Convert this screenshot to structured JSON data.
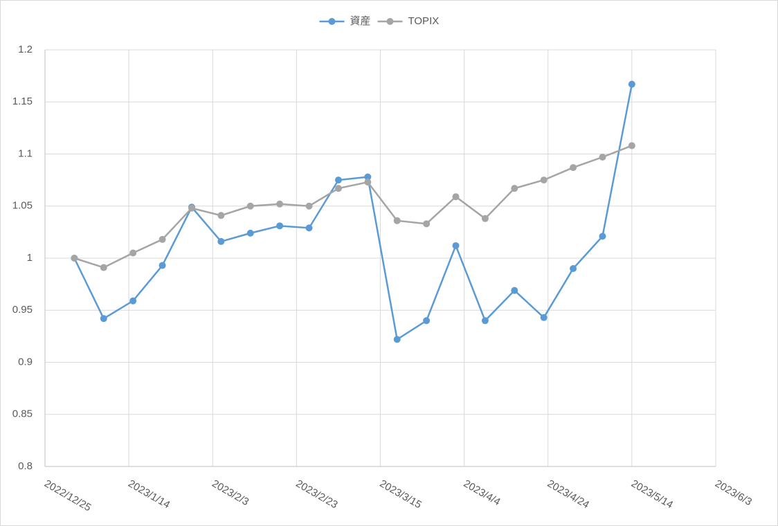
{
  "chart_data": {
    "type": "line",
    "x": [
      "2023/1/1",
      "2023/1/8",
      "2023/1/15",
      "2023/1/22",
      "2023/1/29",
      "2023/2/5",
      "2023/2/12",
      "2023/2/19",
      "2023/2/26",
      "2023/3/5",
      "2023/3/12",
      "2023/3/19",
      "2023/3/26",
      "2023/4/2",
      "2023/4/9",
      "2023/4/16",
      "2023/4/23",
      "2023/4/30",
      "2023/5/7",
      "2023/5/14"
    ],
    "series": [
      {
        "name": "資産",
        "color": "#5b9bd5",
        "values": [
          1.0,
          0.942,
          0.959,
          0.993,
          1.049,
          1.016,
          1.024,
          1.031,
          1.029,
          1.075,
          1.078,
          0.922,
          0.94,
          1.012,
          0.94,
          0.969,
          0.943,
          0.99,
          1.021,
          1.167
        ]
      },
      {
        "name": "TOPIX",
        "color": "#a5a5a5",
        "values": [
          1.0,
          0.991,
          1.005,
          1.018,
          1.048,
          1.041,
          1.05,
          1.052,
          1.05,
          1.067,
          1.073,
          1.036,
          1.033,
          1.059,
          1.038,
          1.067,
          1.075,
          1.087,
          1.097,
          1.108
        ]
      }
    ],
    "xlim": [
      "2022/12/25",
      "2023/6/3"
    ],
    "xticks": [
      "2022/12/25",
      "2023/1/14",
      "2023/2/3",
      "2023/2/23",
      "2023/3/15",
      "2023/4/4",
      "2023/4/24",
      "2023/5/14",
      "2023/6/3"
    ],
    "ylim": [
      0.8,
      1.2
    ],
    "yticks": [
      0.8,
      0.85,
      0.9,
      0.95,
      1,
      1.05,
      1.1,
      1.15,
      1.2
    ],
    "grid": true,
    "legend": "top"
  }
}
